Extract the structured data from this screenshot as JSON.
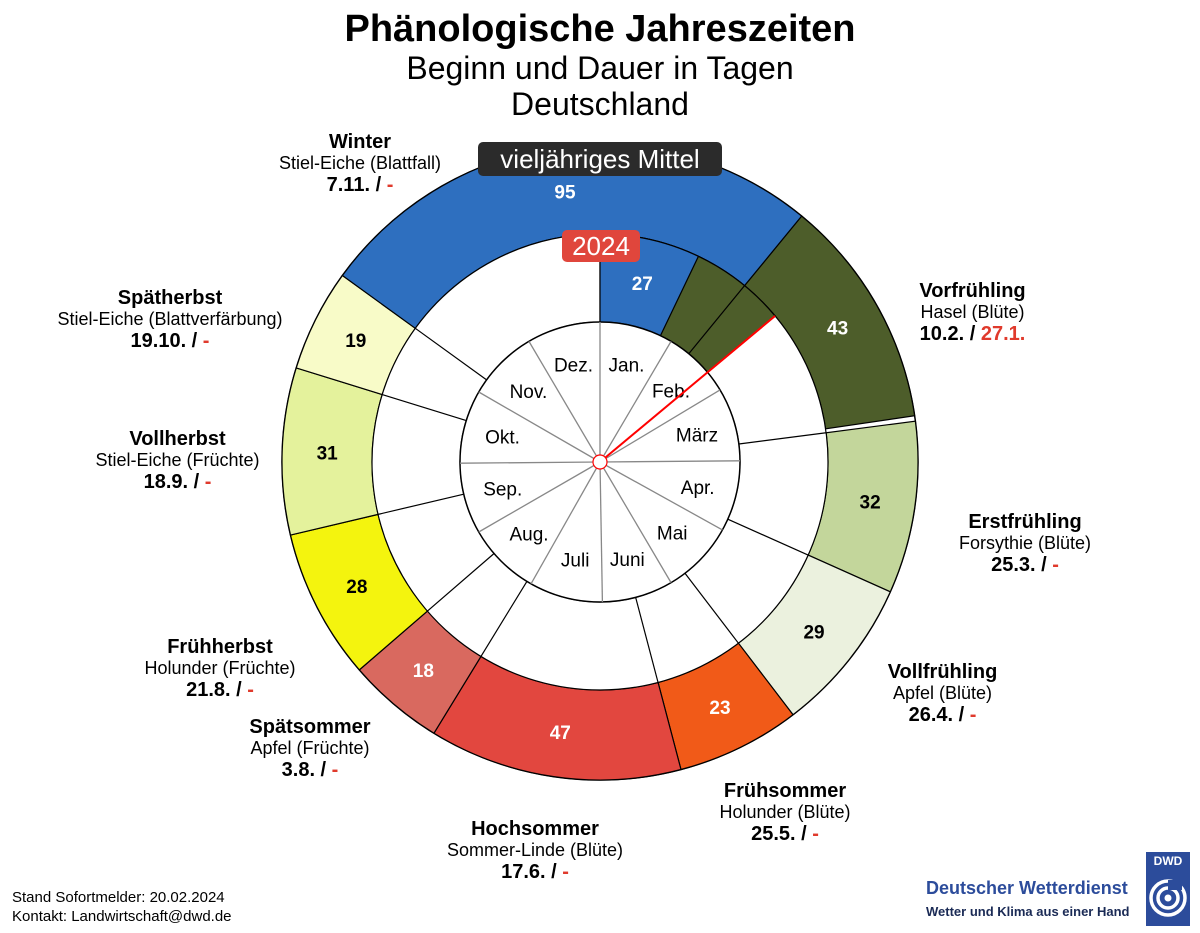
{
  "header": {
    "title": "Phänologische Jahreszeiten",
    "subtitle": "Beginn und Dauer in Tagen",
    "region": "Deutschland"
  },
  "badges": {
    "mean": "vieljähriges Mittel",
    "year": "2024"
  },
  "chart_data": {
    "type": "donut",
    "reference_year_end_day_of_year": 51,
    "outer_ring_label": "vieljähriges Mittel",
    "inner_ring_label": "2024",
    "months": [
      "Jan.",
      "Feb.",
      "März",
      "Apr.",
      "Mai",
      "Juni",
      "Juli",
      "Aug.",
      "Sep.",
      "Okt.",
      "Nov.",
      "Dez."
    ],
    "seasons": [
      {
        "name": "Vorfrühling",
        "plant": "Hasel (Blüte)",
        "mean_start": "10.2.",
        "current_start": "27.1.",
        "mean_duration": 43,
        "current_duration": 0,
        "color": "#4d5d2a",
        "text_color": "#ffffff"
      },
      {
        "name": "Erstfrühling",
        "plant": "Forsythie (Blüte)",
        "mean_start": "25.3.",
        "current_start": "-",
        "mean_duration": 32,
        "current_duration": null,
        "color": "#c3d69b",
        "text_color": "#000000"
      },
      {
        "name": "Vollfrühling",
        "plant": "Apfel (Blüte)",
        "mean_start": "26.4.",
        "current_start": "-",
        "mean_duration": 29,
        "current_duration": null,
        "color": "#ebf1de",
        "text_color": "#000000"
      },
      {
        "name": "Frühsommer",
        "plant": "Holunder (Blüte)",
        "mean_start": "25.5.",
        "current_start": "-",
        "mean_duration": 23,
        "current_duration": null,
        "color": "#f15a18",
        "text_color": "#ffffff"
      },
      {
        "name": "Hochsommer",
        "plant": "Sommer-Linde (Blüte)",
        "mean_start": "17.6.",
        "current_start": "-",
        "mean_duration": 47,
        "current_duration": null,
        "color": "#e2473f",
        "text_color": "#ffffff"
      },
      {
        "name": "Spätsommer",
        "plant": "Apfel (Früchte)",
        "mean_start": "3.8.",
        "current_start": "-",
        "mean_duration": 18,
        "current_duration": null,
        "color": "#d9695f",
        "text_color": "#ffffff"
      },
      {
        "name": "Frühherbst",
        "plant": "Holunder (Früchte)",
        "mean_start": "21.8.",
        "current_start": "-",
        "mean_duration": 28,
        "current_duration": null,
        "color": "#f4f40e",
        "text_color": "#000000"
      },
      {
        "name": "Vollherbst",
        "plant": "Stiel-Eiche (Früchte)",
        "mean_start": "18.9.",
        "current_start": "-",
        "mean_duration": 31,
        "current_duration": null,
        "color": "#e4f29c",
        "text_color": "#000000"
      },
      {
        "name": "Spätherbst",
        "plant": "Stiel-Eiche (Blattverfärbung)",
        "mean_start": "19.10.",
        "current_start": "-",
        "mean_duration": 19,
        "current_duration": null,
        "color": "#f8fbc8",
        "text_color": "#000000"
      },
      {
        "name": "Winter",
        "plant": "Stiel-Eiche (Blattfall)",
        "mean_start": "7.11.",
        "current_start": "-",
        "mean_duration": 95,
        "current_duration": 27,
        "color": "#2e6fbf",
        "text_color": "#ffffff"
      }
    ]
  },
  "footer": {
    "stand": "Stand Sofortmelder: 20.02.2024",
    "kontakt": "Kontakt: Landwirtschaft@dwd.de"
  },
  "logo": {
    "name": "Deutscher Wetterdienst",
    "tagline": "Wetter und Klima aus einer Hand",
    "abbr": "DWD"
  }
}
